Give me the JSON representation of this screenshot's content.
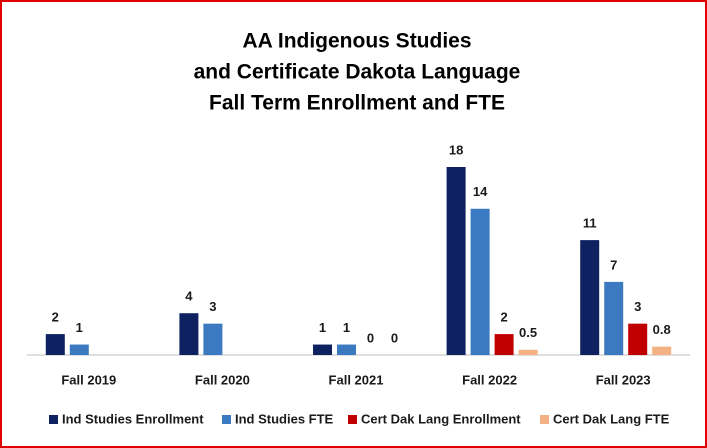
{
  "chart_data": {
    "type": "bar",
    "title": [
      "AA Indigenous Studies",
      "and Certificate Dakota Language",
      "Fall Term Enrollment and FTE"
    ],
    "categories": [
      "Fall 2019",
      "Fall 2020",
      "Fall 2021",
      "Fall 2022",
      "Fall 2023"
    ],
    "series": [
      {
        "name": "Ind Studies Enrollment",
        "color": "#0e2262",
        "values": [
          2,
          4,
          1,
          18,
          11
        ]
      },
      {
        "name": "Ind Studies FTE",
        "color": "#3b79c1",
        "values": [
          1,
          3,
          1,
          14,
          7
        ]
      },
      {
        "name": "Cert Dak Lang Enrollment",
        "color": "#c00000",
        "values": [
          null,
          null,
          0,
          2,
          3
        ]
      },
      {
        "name": "Cert Dak Lang FTE",
        "color": "#f4b183",
        "values": [
          null,
          null,
          0,
          0.5,
          0.8
        ]
      }
    ],
    "legend": "bottom"
  }
}
